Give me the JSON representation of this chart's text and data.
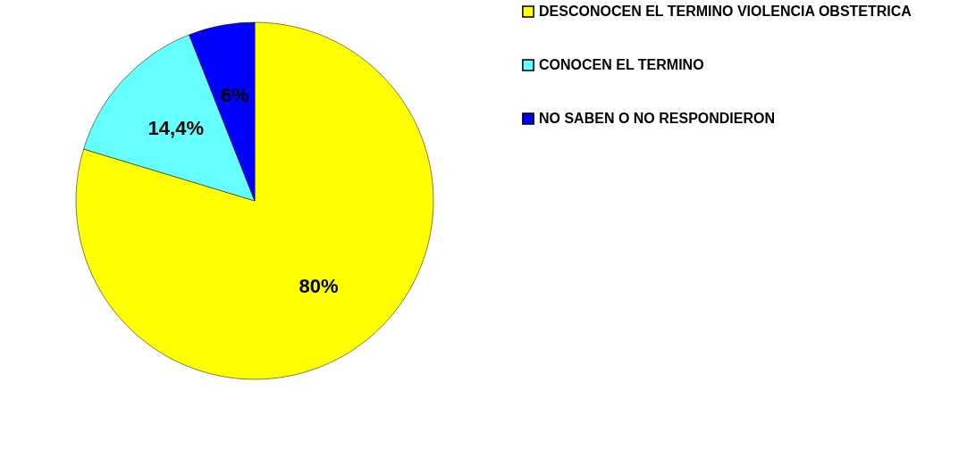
{
  "chart_data": {
    "type": "pie",
    "categories": [
      "DESCONOCEN EL TERMINO VIOLENCIA OBSTETRICA",
      "CONOCEN EL TERMINO",
      "NO SABEN O NO RESPONDIERON"
    ],
    "values": [
      80,
      14.4,
      6
    ],
    "value_labels": [
      "80%",
      "14,4%",
      "6%"
    ],
    "colors": [
      "#ffff00",
      "#66ffff",
      "#0000ff"
    ],
    "legend": "right"
  }
}
